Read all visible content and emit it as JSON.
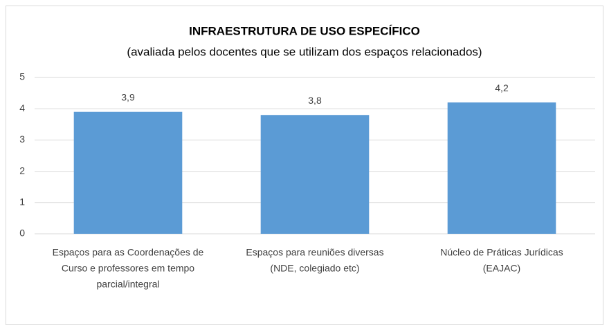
{
  "chart_data": {
    "type": "bar",
    "title": "INFRAESTRUTURA DE USO ESPECÍFICO",
    "subtitle": "(avaliada pelos docentes que se utilizam dos espaços relacionados)",
    "categories": [
      [
        "Espaços para as Coordenações de",
        "Curso e professores em tempo",
        "parcial/integral"
      ],
      [
        "Espaços para reuniões diversas",
        "(NDE, colegiado etc)"
      ],
      [
        "Núcleo de Práticas Jurídicas",
        "(EAJAC)"
      ]
    ],
    "values": [
      3.9,
      3.8,
      4.2
    ],
    "value_labels": [
      "3,9",
      "3,8",
      "4,2"
    ],
    "color": "#5b9bd5",
    "ylim": [
      0,
      5
    ],
    "yticks": [
      0,
      1,
      2,
      3,
      4,
      5
    ],
    "grid": true
  }
}
